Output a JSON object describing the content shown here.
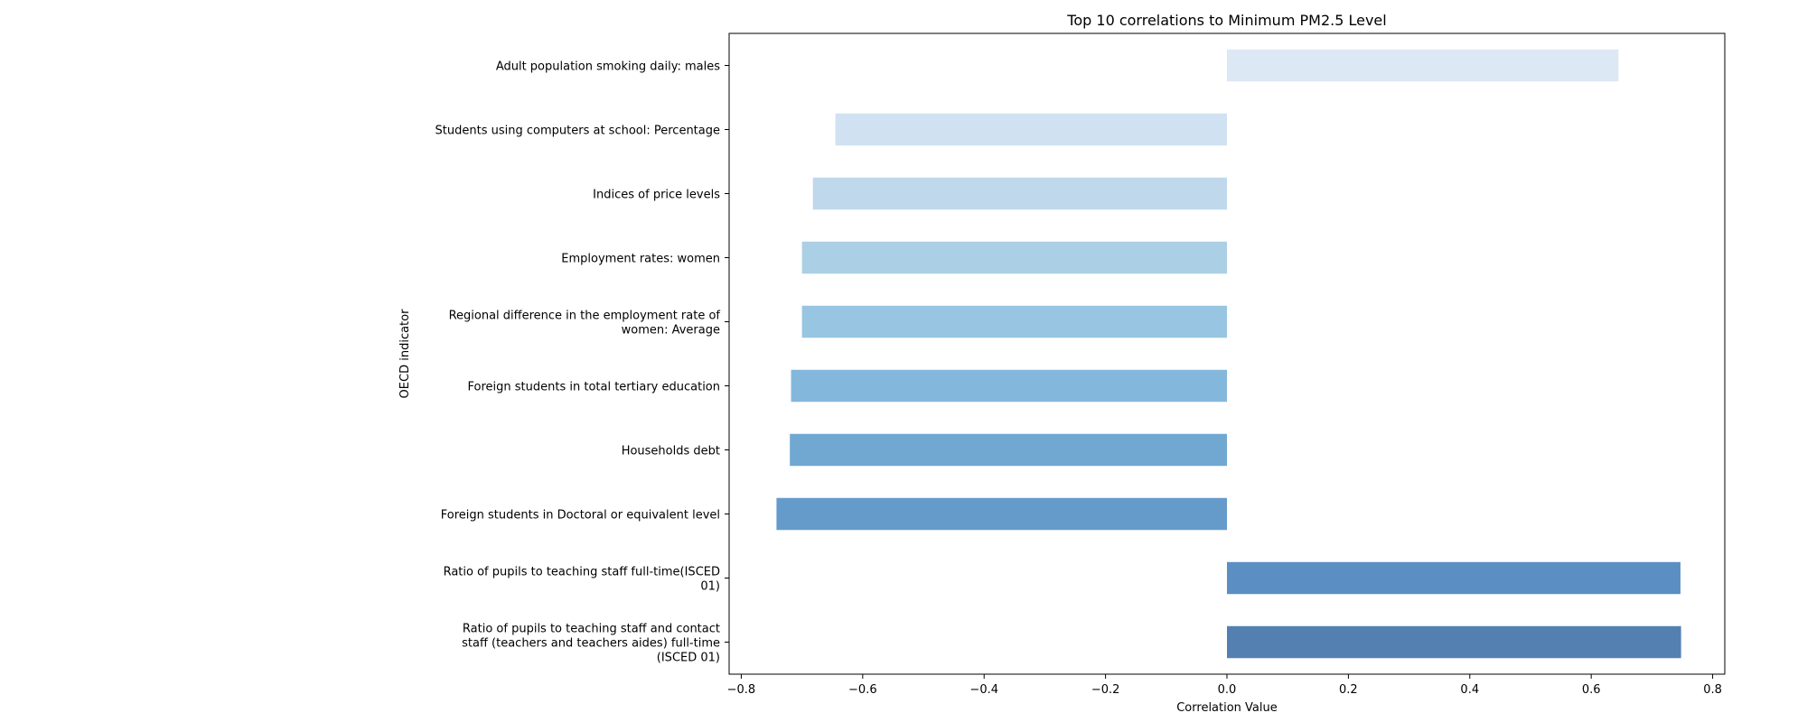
{
  "chart_data": {
    "type": "bar",
    "orientation": "horizontal",
    "title": "Top 10 correlations to Minimum PM2.5 Level",
    "xlabel": "Correlation Value",
    "ylabel": "OECD indicator",
    "xlim": [
      -0.82,
      0.82
    ],
    "x_ticks": [
      -0.8,
      -0.6,
      -0.4,
      -0.2,
      0.0,
      0.2,
      0.4,
      0.6,
      0.8
    ],
    "x_tick_labels": [
      "−0.8",
      "−0.6",
      "−0.4",
      "−0.2",
      "0.0",
      "0.2",
      "0.4",
      "0.6",
      "0.8"
    ],
    "grid": false,
    "legend": "none",
    "categories": [
      "Adult population smoking daily: males",
      "Students using computers at school: Percentage",
      "Indices of price levels",
      "Employment rates: women",
      "Regional difference in the employment rate of\nwomen: Average",
      "Foreign students in total tertiary education",
      "Households debt",
      "Foreign students in Doctoral or equivalent level",
      "Ratio of pupils to teaching staff full-time(ISCED\n01)",
      "Ratio of pupils to teaching staff and contact\nstaff (teachers and teachers aides) full-time\n(ISCED 01)"
    ],
    "values": [
      0.645,
      -0.645,
      -0.682,
      -0.7,
      -0.7,
      -0.718,
      -0.72,
      -0.742,
      0.747,
      0.748
    ],
    "colors": [
      "#dde8f5",
      "#d0e1f1",
      "#bfd8ec",
      "#abcfe5",
      "#98c5e1",
      "#83b8dc",
      "#70a8d2",
      "#659bca",
      "#5b8ec2",
      "#5480b1"
    ]
  }
}
